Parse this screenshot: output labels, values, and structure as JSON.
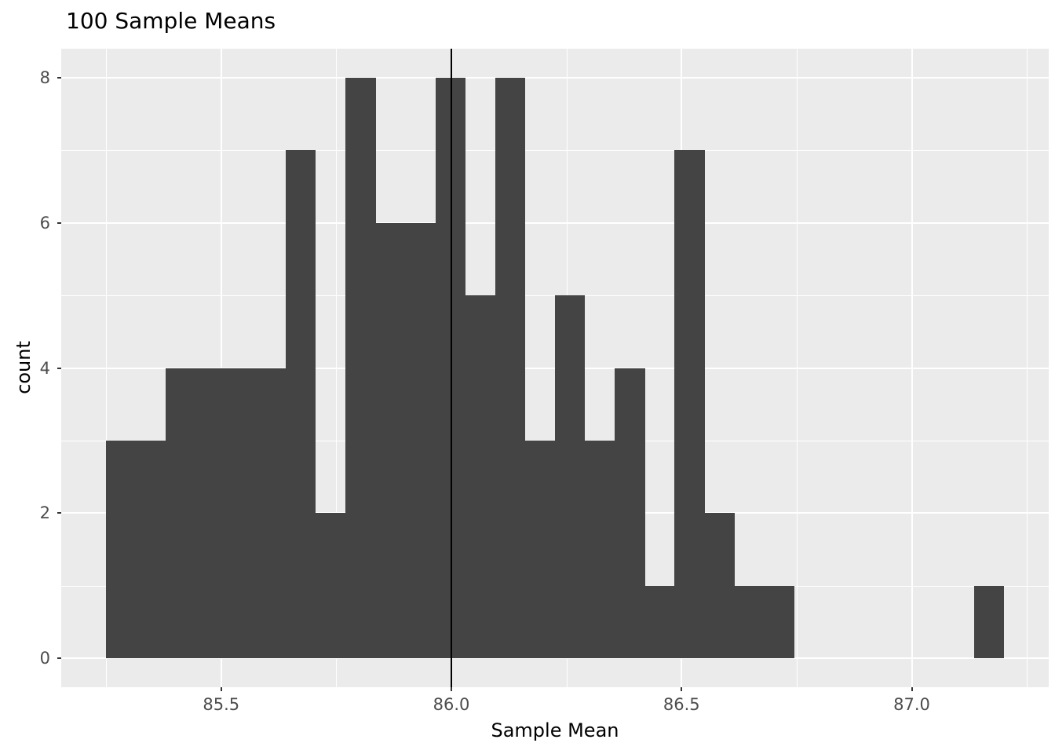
{
  "chart_data": {
    "type": "bar",
    "subtype": "histogram",
    "title": "100 Sample Means",
    "xlabel": "Sample Mean",
    "ylabel": "count",
    "bin_start": 85.25,
    "bin_width": 0.065,
    "counts": [
      3,
      3,
      4,
      4,
      4,
      4,
      7,
      2,
      8,
      6,
      6,
      8,
      5,
      8,
      3,
      5,
      3,
      4,
      1,
      7,
      2,
      1,
      1,
      0,
      0,
      0,
      0,
      0,
      0,
      1
    ],
    "vline_x": 86.0,
    "x_ticks": [
      85.5,
      86.0,
      86.5,
      87.0
    ],
    "x_tick_labels": [
      "85.5",
      "86.0",
      "86.5",
      "87.0"
    ],
    "y_ticks": [
      0,
      2,
      4,
      6,
      8
    ],
    "y_tick_labels": [
      "0",
      "2",
      "4",
      "6",
      "8"
    ],
    "x_minor_ticks": [
      85.25,
      85.75,
      86.25,
      86.75,
      87.25
    ],
    "y_minor_ticks": [
      1,
      3,
      5,
      7
    ],
    "xlim": [
      85.1525,
      87.2975
    ],
    "ylim": [
      -0.4,
      8.4
    ],
    "grid": true,
    "legend": "none",
    "bar_color": "#444444",
    "panel_bg": "#EBEBEB",
    "grid_color": "#FFFFFF",
    "vline_color": "#000000",
    "tick_label_color": "#4D4D4D"
  }
}
